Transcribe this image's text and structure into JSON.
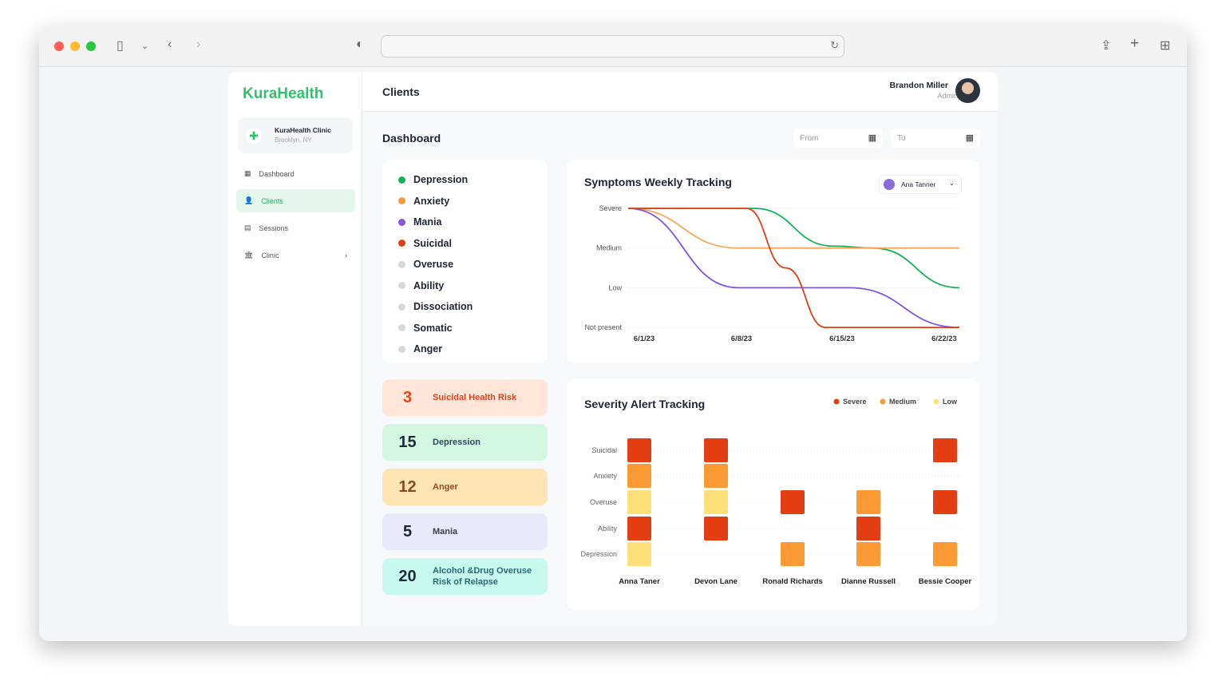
{
  "browser": {
    "colors": {
      "close": "#ff5f57",
      "min": "#febc2e",
      "max": "#28c840"
    }
  },
  "app": {
    "logo": "KuraHealth",
    "clinic": {
      "name": "KuraHealth Clinic",
      "location": "Brooklyn, NY"
    },
    "nav": [
      {
        "label": "Dashboard",
        "icon": "grid-icon"
      },
      {
        "label": "Clients",
        "icon": "users-icon",
        "active": true
      },
      {
        "label": "Sessions",
        "icon": "sessions-icon"
      },
      {
        "label": "Clinic",
        "icon": "building-icon"
      }
    ]
  },
  "header": {
    "title": "Clients",
    "user": {
      "name": "Brandon Miller",
      "role": "Admin"
    }
  },
  "dashboard": {
    "title": "Dashboard",
    "from_placeholder": "From",
    "to_placeholder": "To"
  },
  "symptoms": [
    {
      "label": "Depression",
      "color": "#16b157"
    },
    {
      "label": "Anxiety",
      "color": "#fb9a3c"
    },
    {
      "label": "Mania",
      "color": "#8353e2"
    },
    {
      "label": "Suicidal",
      "color": "#e23d13"
    },
    {
      "label": "Overuse",
      "color": "#d5d7db"
    },
    {
      "label": "Ability",
      "color": "#d5d7db"
    },
    {
      "label": "Dissociation",
      "color": "#d5d7db"
    },
    {
      "label": "Somatic",
      "color": "#d5d7db"
    },
    {
      "label": "Anger",
      "color": "#d5d7db"
    }
  ],
  "stats": [
    {
      "n": "3",
      "label": "Suicidal Health Risk",
      "bg": "#ffe6d8",
      "fg": "#e2431b",
      "nfg": "#e2431b"
    },
    {
      "n": "15",
      "label": "Depression",
      "bg": "#d3f7e1",
      "fg": "#2b4b5c",
      "nfg": "#1f2b3a"
    },
    {
      "n": "12",
      "label": "Anger",
      "bg": "#ffe4b4",
      "fg": "#9a4b24",
      "nfg": "#8c4a22"
    },
    {
      "n": "5",
      "label": "Mania",
      "bg": "#e9e9fc",
      "fg": "#3c4152",
      "nfg": "#1f2633"
    },
    {
      "n": "20",
      "label": "Alcohol &Drug Overuse Risk of Relapse",
      "bg": "#c8f9ef",
      "fg": "#2a6a78",
      "nfg": "#1f2b3a"
    }
  ],
  "chart_data": [
    {
      "type": "line",
      "title": "Symptoms Weekly Tracking",
      "selected_client": "Ana Tanner",
      "y_levels": [
        "Not present",
        "Low",
        "Medium",
        "Severe"
      ],
      "x_ticks": [
        "6/1/23",
        "6/8/23",
        "6/15/23",
        "6/22/23"
      ],
      "x_range_days": [
        0,
        21
      ],
      "series": [
        {
          "name": "Depression",
          "color": "#16b157",
          "points": [
            [
              0,
              3
            ],
            [
              8,
              3
            ],
            [
              13,
              2.05
            ],
            [
              15.5,
              2
            ],
            [
              21,
              1
            ]
          ]
        },
        {
          "name": "Anxiety",
          "color": "#fba65a",
          "points": [
            [
              0,
              3
            ],
            [
              7,
              2
            ],
            [
              21,
              2
            ]
          ]
        },
        {
          "name": "Mania",
          "color": "#8353e2",
          "points": [
            [
              0,
              3
            ],
            [
              7,
              1
            ],
            [
              14,
              1
            ],
            [
              21,
              0
            ]
          ]
        },
        {
          "name": "Suicidal",
          "color": "#e23d13",
          "points": [
            [
              0,
              3
            ],
            [
              7.5,
              3
            ],
            [
              10,
              1.5
            ],
            [
              12.5,
              0
            ],
            [
              21,
              0
            ]
          ]
        }
      ]
    },
    {
      "type": "heatmap",
      "title": "Severity Alert Tracking",
      "legend": [
        {
          "label": "Severe",
          "color": "#e23d13"
        },
        {
          "label": "Medium",
          "color": "#fb9a35"
        },
        {
          "label": "Low",
          "color": "#fde07a"
        }
      ],
      "rows": [
        "Suicidal",
        "Anxiety",
        "Overuse",
        "Ability",
        "Depression"
      ],
      "columns": [
        "Anna Taner",
        "Devon Lane",
        "Ronald Richards",
        "Dianne Russell",
        "Bessie Cooper"
      ],
      "values": [
        [
          "Severe",
          "Medium",
          "Low",
          "Severe",
          "Low"
        ],
        [
          "Severe",
          "Medium",
          "Low",
          "Severe",
          null
        ],
        [
          null,
          null,
          "Severe",
          null,
          "Medium"
        ],
        [
          null,
          null,
          "Medium",
          "Severe",
          "Medium"
        ],
        [
          "Severe",
          null,
          "Severe",
          null,
          "Medium"
        ]
      ]
    }
  ]
}
